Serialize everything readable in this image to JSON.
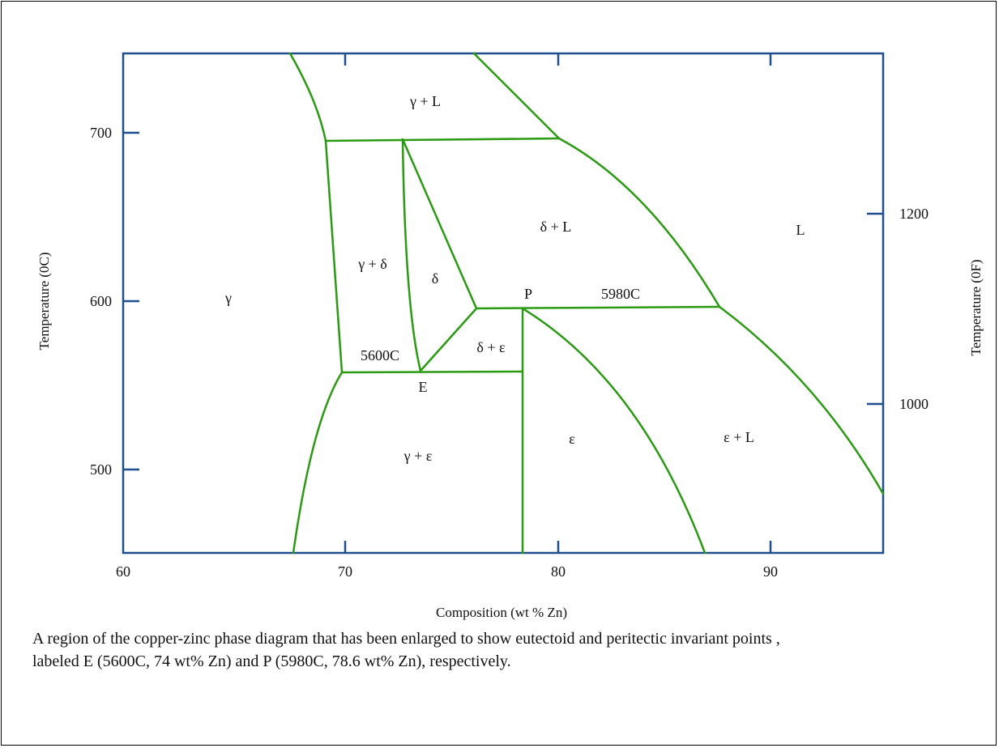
{
  "diagram": {
    "axes": {
      "x_label": "Composition (wt % Zn)",
      "y_left_label": "Temperature (0C)",
      "y_right_label": "Temperature (0F)",
      "x_ticks": [
        "60",
        "70",
        "80",
        "90"
      ],
      "y_left_ticks": [
        "700",
        "600",
        "500"
      ],
      "y_right_ticks": [
        "1200",
        "1000"
      ],
      "x_range": [
        60,
        95.7
      ],
      "y_range": [
        450,
        750
      ],
      "line_color": "#1f4e8c",
      "phase_line_color": "#2a9a12"
    },
    "regions": {
      "gamma_L": "γ + L",
      "delta_L": "δ + L",
      "L": "L",
      "gamma_delta": "γ + δ",
      "delta": "δ",
      "gamma": "γ",
      "delta_epsilon": "δ + ε",
      "gamma_epsilon": "γ + ε",
      "epsilon": "ε",
      "epsilon_L": "ε + L"
    },
    "points": {
      "P": "P",
      "E": "E",
      "peritectic_temp": "5980C",
      "eutectoid_temp": "5600C"
    }
  },
  "caption": {
    "line1": "A region of the copper-zinc phase diagram that has been enlarged to show eutectoid and peritectic invariant points ,",
    "line2": "labeled E (5600C, 74 wt% Zn) and P (5980C, 78.6 wt% Zn), respectively."
  }
}
